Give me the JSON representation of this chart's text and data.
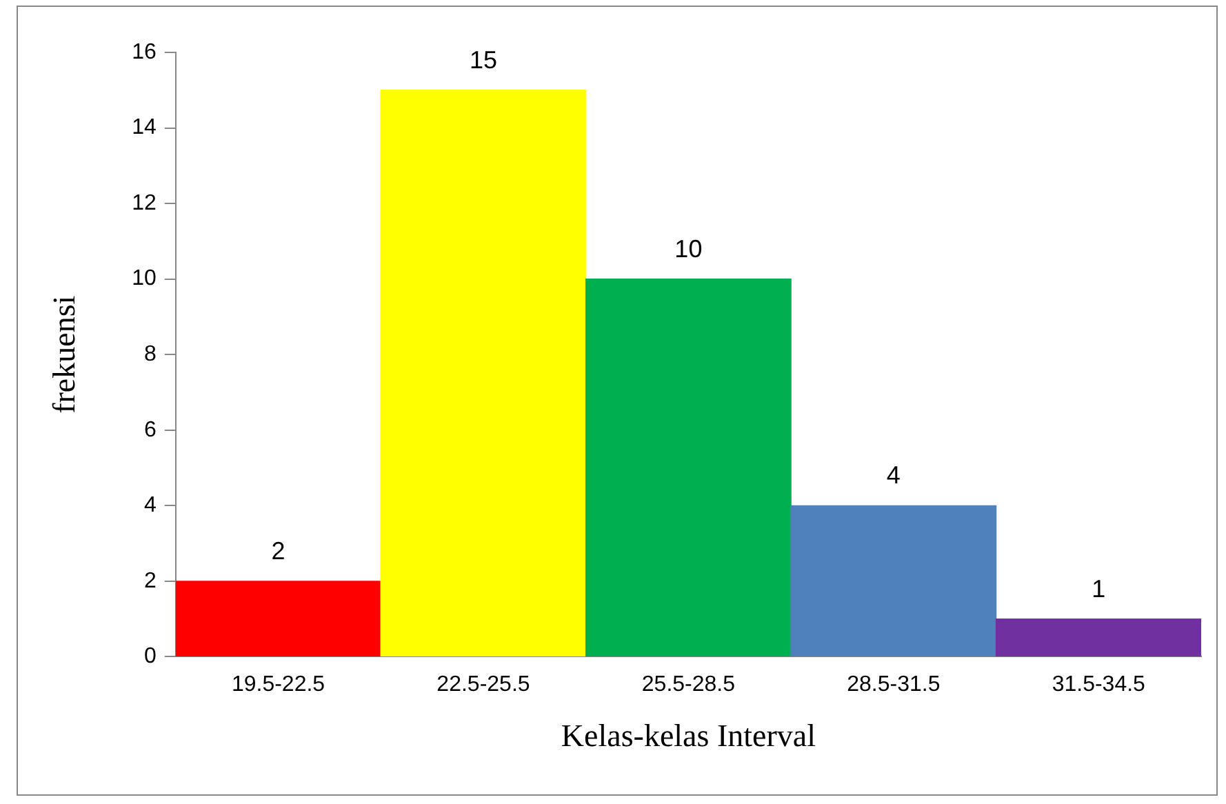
{
  "chart_data": {
    "type": "bar",
    "xlabel": "Kelas-kelas Interval",
    "ylabel": "frekuensi",
    "categories": [
      "19.5-22.5",
      "22.5-25.5",
      "25.5-28.5",
      "28.5-31.5",
      "31.5-34.5"
    ],
    "values": [
      2,
      15,
      10,
      4,
      1
    ],
    "colors": [
      "#ff0000",
      "#ffff00",
      "#00b050",
      "#4f81bd",
      "#7030a0"
    ],
    "ylim": [
      0,
      16
    ],
    "yticks": [
      0,
      2,
      4,
      6,
      8,
      10,
      12,
      14,
      16
    ],
    "data_labels": true
  }
}
